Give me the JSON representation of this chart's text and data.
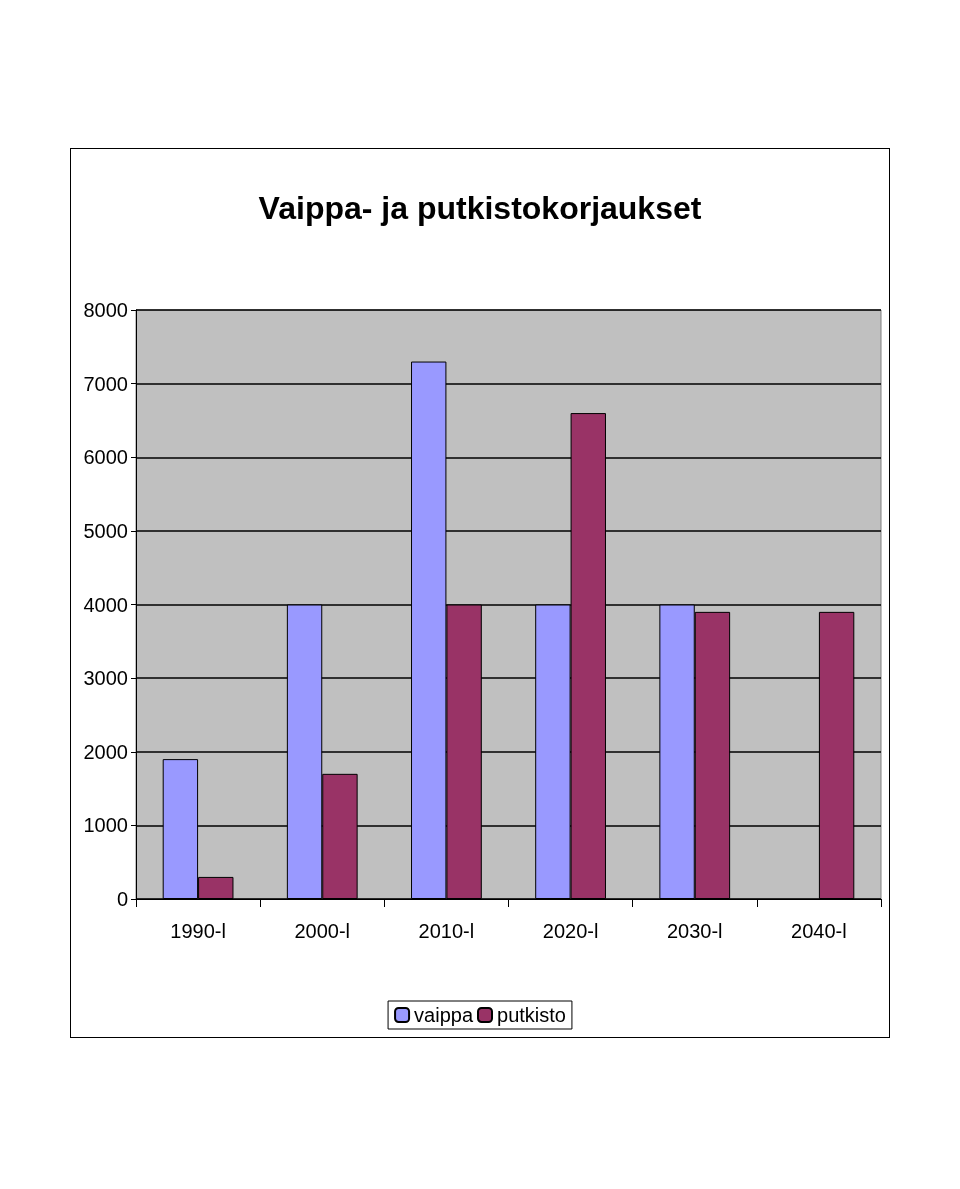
{
  "chart_data": {
    "type": "bar",
    "title": "Vaippa- ja putkistokorjaukset",
    "categories": [
      "1990-l",
      "2000-l",
      "2010-l",
      "2020-l",
      "2030-l",
      "2040-l"
    ],
    "series": [
      {
        "name": "vaippa",
        "color": "#9999ff",
        "values": [
          1900,
          4000,
          7300,
          4000,
          4000,
          null
        ]
      },
      {
        "name": "putkisto",
        "color": "#993366",
        "values": [
          300,
          1700,
          4000,
          6600,
          3900,
          3900
        ]
      }
    ],
    "ylim": [
      0,
      8000
    ],
    "yticks": [
      0,
      1000,
      2000,
      3000,
      4000,
      5000,
      6000,
      7000,
      8000
    ],
    "grid": "y",
    "legend": "bottom"
  }
}
